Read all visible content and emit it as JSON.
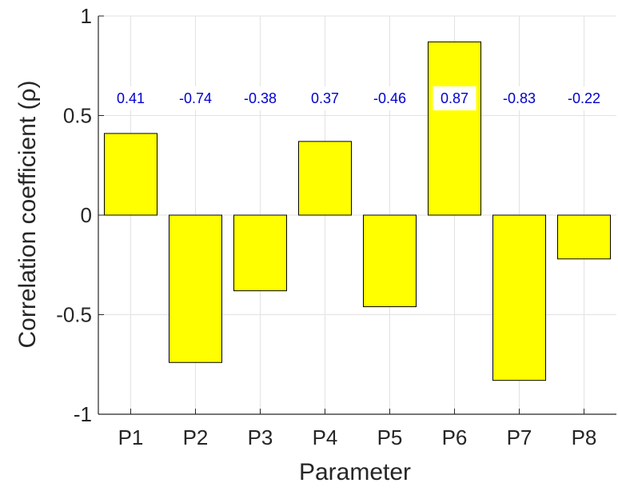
{
  "chart_data": {
    "type": "bar",
    "categories": [
      "P1",
      "P2",
      "P3",
      "P4",
      "P5",
      "P6",
      "P7",
      "P8"
    ],
    "values": [
      0.41,
      -0.74,
      -0.38,
      0.37,
      -0.46,
      0.87,
      -0.83,
      -0.22
    ],
    "value_labels": [
      "0.41",
      "-0.74",
      "-0.38",
      "0.37",
      "-0.46",
      "0.87",
      "-0.83",
      "-0.22"
    ],
    "xlabel": "Parameter",
    "ylabel": "Correlation coefficient (ρ)",
    "ylim": [
      -1,
      1
    ],
    "yticks": [
      -1,
      -0.5,
      0,
      0.5,
      1
    ],
    "ytick_labels": [
      "-1",
      "-0.5",
      "0",
      "0.5",
      "1"
    ],
    "grid": true,
    "bar_color": "#ffff00",
    "label_color": "#0000cc"
  }
}
